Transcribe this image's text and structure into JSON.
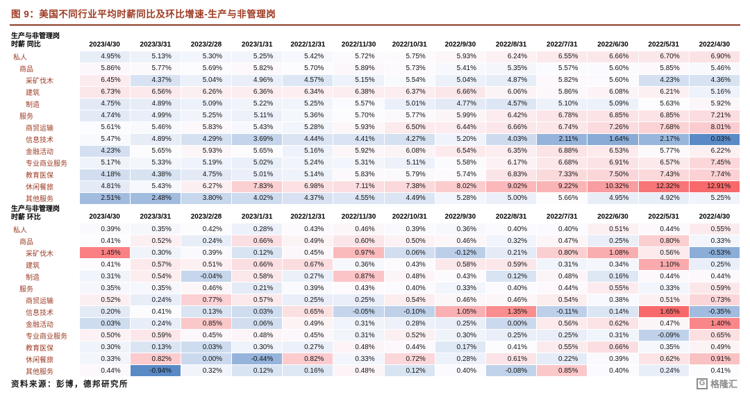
{
  "header": {
    "figure_label": "图 9：",
    "title": "美国不同行业平均时薪同比及环比增速-生产与非管理岗"
  },
  "footer": {
    "source": "资料来源：彭博，德邦研究所",
    "logo_letter": "G",
    "logo_text": "格隆汇"
  },
  "colors": {
    "title_accent": "#9e3a22",
    "row_label": "#9c3a22",
    "scale_low": "#5a8ac6",
    "scale_mid": "#fcfcff",
    "scale_high": "#f8696b"
  },
  "chart_data": {
    "type": "heatmap",
    "unit": "%",
    "columns": [
      "2023/4/30",
      "2023/3/31",
      "2023/2/28",
      "2023/1/31",
      "2022/12/31",
      "2022/11/30",
      "2022/10/31",
      "2022/9/30",
      "2022/8/31",
      "2022/7/31",
      "2022/6/30",
      "2022/5/31",
      "2022/4/30"
    ],
    "rows": [
      {
        "label": "私人",
        "indent": 0
      },
      {
        "label": "商品",
        "indent": 1
      },
      {
        "label": "采矿伐木",
        "indent": 2
      },
      {
        "label": "建筑",
        "indent": 2
      },
      {
        "label": "制造",
        "indent": 2
      },
      {
        "label": "服务",
        "indent": 1
      },
      {
        "label": "商贸运输",
        "indent": 2
      },
      {
        "label": "信息技术",
        "indent": 2
      },
      {
        "label": "金融活动",
        "indent": 2
      },
      {
        "label": "专业商业服务",
        "indent": 2
      },
      {
        "label": "教育医保",
        "indent": 2
      },
      {
        "label": "休闲餐旅",
        "indent": 2
      },
      {
        "label": "其他服务",
        "indent": 2
      }
    ],
    "colorscale": {
      "low": "#5a8ac6",
      "mid": "#fcfcff",
      "high": "#f8696b",
      "midpoint": "median"
    },
    "tables": [
      {
        "name": "同比",
        "corner": [
          "生产与非管理岗",
          "时薪  同比"
        ],
        "values": [
          [
            4.95,
            5.13,
            5.3,
            5.25,
            5.42,
            5.72,
            5.75,
            5.93,
            6.24,
            6.55,
            6.66,
            6.7,
            6.9
          ],
          [
            5.86,
            5.77,
            5.69,
            5.82,
            5.7,
            5.89,
            5.73,
            5.41,
            5.35,
            5.57,
            5.6,
            5.85,
            5.46
          ],
          [
            6.45,
            4.37,
            5.04,
            4.96,
            4.57,
            5.15,
            5.54,
            5.04,
            4.87,
            5.82,
            5.6,
            4.23,
            4.36
          ],
          [
            6.73,
            6.56,
            6.26,
            6.36,
            6.34,
            6.38,
            6.37,
            6.66,
            6.06,
            5.86,
            6.08,
            6.21,
            5.16
          ],
          [
            4.75,
            4.89,
            5.09,
            5.22,
            5.25,
            5.57,
            5.01,
            4.77,
            4.57,
            5.1,
            5.09,
            5.63,
            5.92
          ],
          [
            4.74,
            4.99,
            5.25,
            5.11,
            5.36,
            5.7,
            5.77,
            5.99,
            6.42,
            6.78,
            6.85,
            6.85,
            7.21
          ],
          [
            5.61,
            5.46,
            5.83,
            5.43,
            5.28,
            5.93,
            6.5,
            6.44,
            6.66,
            6.74,
            7.26,
            7.68,
            8.01
          ],
          [
            5.47,
            4.89,
            4.29,
            3.69,
            4.44,
            4.41,
            4.27,
            5.2,
            4.03,
            2.11,
            1.64,
            2.17,
            0.03
          ],
          [
            4.23,
            5.65,
            5.93,
            5.65,
            5.16,
            5.92,
            6.08,
            6.54,
            6.35,
            6.88,
            6.53,
            5.77,
            6.22
          ],
          [
            5.17,
            5.33,
            5.19,
            5.02,
            5.24,
            5.31,
            5.11,
            5.58,
            6.17,
            6.68,
            6.91,
            6.57,
            7.45
          ],
          [
            4.18,
            4.38,
            4.75,
            5.01,
            5.14,
            5.83,
            5.79,
            5.74,
            6.83,
            7.33,
            7.5,
            7.43,
            7.74
          ],
          [
            4.81,
            5.43,
            6.27,
            7.83,
            6.98,
            7.11,
            7.38,
            8.02,
            9.02,
            9.22,
            10.32,
            12.32,
            12.91
          ],
          [
            2.51,
            2.48,
            3.8,
            4.02,
            4.37,
            4.55,
            4.49,
            5.28,
            5.0,
            5.66,
            4.95,
            4.92,
            5.25
          ]
        ]
      },
      {
        "name": "环比",
        "corner": [
          "生产与非管理岗",
          "时薪  环比"
        ],
        "values": [
          [
            0.39,
            0.35,
            0.42,
            0.28,
            0.43,
            0.46,
            0.39,
            0.36,
            0.4,
            0.4,
            0.51,
            0.44,
            0.55
          ],
          [
            0.41,
            0.52,
            0.24,
            0.66,
            0.49,
            0.6,
            0.5,
            0.46,
            0.32,
            0.47,
            0.25,
            0.8,
            0.33
          ],
          [
            1.45,
            0.3,
            0.39,
            0.12,
            0.45,
            0.97,
            0.06,
            -0.12,
            0.21,
            0.8,
            1.08,
            0.56,
            -0.53
          ],
          [
            0.41,
            0.57,
            0.51,
            0.66,
            0.67,
            0.36,
            0.43,
            0.58,
            0.59,
            0.31,
            0.34,
            1.1,
            0.25
          ],
          [
            0.31,
            0.54,
            -0.04,
            0.58,
            0.27,
            0.87,
            0.48,
            0.43,
            0.12,
            0.48,
            0.16,
            0.44,
            0.44
          ],
          [
            0.35,
            0.35,
            0.46,
            0.21,
            0.39,
            0.43,
            0.4,
            0.33,
            0.4,
            0.44,
            0.55,
            0.33,
            0.59
          ],
          [
            0.52,
            0.24,
            0.77,
            0.57,
            0.25,
            0.25,
            0.54,
            0.46,
            0.46,
            0.54,
            0.38,
            0.51,
            0.73
          ],
          [
            0.2,
            0.41,
            0.13,
            0.03,
            0.65,
            -0.05,
            -0.1,
            1.05,
            1.35,
            -0.11,
            0.14,
            1.65,
            -0.35
          ],
          [
            0.03,
            0.24,
            0.85,
            0.06,
            0.49,
            0.31,
            0.28,
            0.25,
            0.0,
            0.56,
            0.62,
            0.47,
            1.4
          ],
          [
            0.5,
            0.59,
            0.45,
            0.48,
            0.45,
            0.31,
            0.52,
            0.3,
            0.25,
            0.25,
            0.31,
            -0.09,
            0.65
          ],
          [
            0.3,
            0.13,
            0.03,
            0.3,
            0.27,
            0.48,
            0.44,
            0.17,
            0.41,
            0.55,
            0.66,
            0.35,
            0.49
          ],
          [
            0.33,
            0.82,
            0.0,
            -0.44,
            0.82,
            0.33,
            0.72,
            0.28,
            0.61,
            0.22,
            0.39,
            0.62,
            0.91
          ],
          [
            0.44,
            -0.94,
            0.32,
            0.12,
            0.16,
            0.48,
            0.12,
            0.4,
            -0.08,
            0.85,
            0.4,
            0.24,
            0.41
          ]
        ]
      }
    ]
  }
}
